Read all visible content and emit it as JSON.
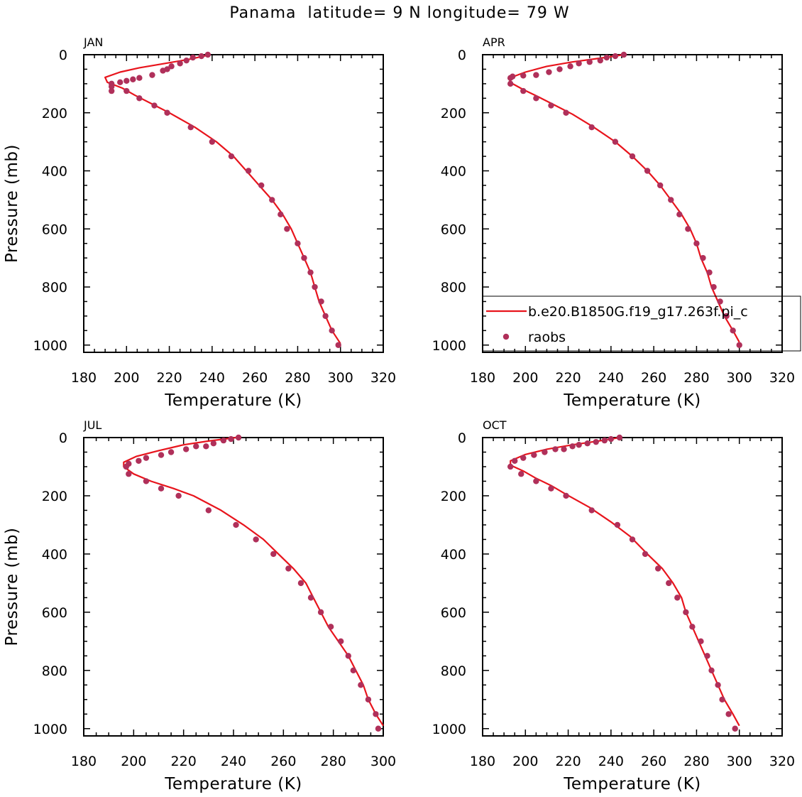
{
  "figure": {
    "title": "Panama  latitude= 9 N longitude= 79 W"
  },
  "chart_data": [
    {
      "type": "line",
      "panel": "JAN",
      "xlabel": "Temperature (K)",
      "ylabel": "Pressure (mb)",
      "xlim": [
        180,
        320
      ],
      "ylim": [
        0,
        1025
      ],
      "y_inverted": true,
      "xticks": [
        180,
        200,
        220,
        240,
        260,
        280,
        300,
        320
      ],
      "yticks": [
        0,
        200,
        400,
        600,
        800,
        1000
      ],
      "series": [
        {
          "name": "b.e20.B1850G.f19_g17.263f.pi_c",
          "kind": "line",
          "color": "#e8141c",
          "points": [
            [
              239,
              0
            ],
            [
              230,
              15
            ],
            [
              218,
              30
            ],
            [
              206,
              45
            ],
            [
              197,
              60
            ],
            [
              190,
              78
            ],
            [
              191,
              95
            ],
            [
              198,
              115
            ],
            [
              204,
              140
            ],
            [
              212,
              170
            ],
            [
              220,
              200
            ],
            [
              232,
              250
            ],
            [
              242,
              300
            ],
            [
              250,
              350
            ],
            [
              256,
              400
            ],
            [
              262,
              450
            ],
            [
              268,
              500
            ],
            [
              273,
              550
            ],
            [
              277,
              600
            ],
            [
              280,
              650
            ],
            [
              283,
              700
            ],
            [
              286,
              750
            ],
            [
              288,
              800
            ],
            [
              290,
              850
            ],
            [
              293,
              900
            ],
            [
              296,
              950
            ],
            [
              300,
              995
            ]
          ]
        },
        {
          "name": "raobs",
          "kind": "scatter",
          "color": "#b0305a",
          "points": [
            [
              238,
              0
            ],
            [
              235,
              5
            ],
            [
              231,
              10
            ],
            [
              228,
              20
            ],
            [
              225,
              30
            ],
            [
              221,
              40
            ],
            [
              219,
              50
            ],
            [
              217,
              55
            ],
            [
              212,
              70
            ],
            [
              206,
              80
            ],
            [
              203,
              85
            ],
            [
              200,
              90
            ],
            [
              197,
              95
            ],
            [
              193,
              100
            ],
            [
              193,
              110
            ],
            [
              193,
              125
            ],
            [
              200,
              125
            ],
            [
              206,
              150
            ],
            [
              213,
              175
            ],
            [
              219,
              200
            ],
            [
              230,
              250
            ],
            [
              240,
              300
            ],
            [
              249,
              350
            ],
            [
              257,
              400
            ],
            [
              263,
              450
            ],
            [
              268,
              500
            ],
            [
              272,
              550
            ],
            [
              275,
              600
            ],
            [
              280,
              650
            ],
            [
              283,
              700
            ],
            [
              286,
              750
            ],
            [
              288,
              800
            ],
            [
              291,
              850
            ],
            [
              293,
              900
            ],
            [
              296,
              950
            ],
            [
              299,
              1000
            ]
          ]
        }
      ]
    },
    {
      "type": "line",
      "panel": "APR",
      "xlabel": "Temperature (K)",
      "ylabel": "",
      "xlim": [
        180,
        320
      ],
      "ylim": [
        0,
        1025
      ],
      "y_inverted": true,
      "xticks": [
        180,
        200,
        220,
        240,
        260,
        280,
        300,
        320
      ],
      "yticks": [
        0,
        200,
        400,
        600,
        800,
        1000
      ],
      "legend": {
        "placement": "lower-right",
        "entries": [
          "b.e20.B1850G.f19_g17.263f.pi_c",
          "raobs"
        ]
      },
      "series": [
        {
          "name": "b.e20.B1850G.f19_g17.263f.pi_c",
          "kind": "line",
          "color": "#e8141c",
          "points": [
            [
              246,
              0
            ],
            [
              235,
              12
            ],
            [
              222,
              25
            ],
            [
              210,
              40
            ],
            [
              200,
              60
            ],
            [
              192,
              82
            ],
            [
              194,
              100
            ],
            [
              199,
              120
            ],
            [
              206,
              145
            ],
            [
              214,
              175
            ],
            [
              222,
              205
            ],
            [
              232,
              250
            ],
            [
              242,
              300
            ],
            [
              250,
              350
            ],
            [
              257,
              400
            ],
            [
              263,
              450
            ],
            [
              268,
              500
            ],
            [
              273,
              550
            ],
            [
              277,
              600
            ],
            [
              280,
              650
            ],
            [
              282,
              700
            ],
            [
              285,
              750
            ],
            [
              287,
              800
            ],
            [
              290,
              850
            ],
            [
              293,
              900
            ],
            [
              297,
              950
            ],
            [
              300,
              990
            ]
          ]
        },
        {
          "name": "raobs",
          "kind": "scatter",
          "color": "#b0305a",
          "points": [
            [
              246,
              0
            ],
            [
              242,
              5
            ],
            [
              238,
              10
            ],
            [
              235,
              20
            ],
            [
              230,
              25
            ],
            [
              225,
              30
            ],
            [
              221,
              40
            ],
            [
              216,
              50
            ],
            [
              211,
              60
            ],
            [
              205,
              70
            ],
            [
              199,
              72
            ],
            [
              194,
              75
            ],
            [
              193,
              80
            ],
            [
              193,
              100
            ],
            [
              199,
              125
            ],
            [
              205,
              150
            ],
            [
              212,
              175
            ],
            [
              219,
              200
            ],
            [
              231,
              250
            ],
            [
              242,
              300
            ],
            [
              250,
              350
            ],
            [
              257,
              400
            ],
            [
              263,
              450
            ],
            [
              268,
              500
            ],
            [
              272,
              550
            ],
            [
              276,
              600
            ],
            [
              280,
              650
            ],
            [
              283,
              700
            ],
            [
              286,
              750
            ],
            [
              288,
              800
            ],
            [
              291,
              850
            ],
            [
              294,
              900
            ],
            [
              297,
              950
            ],
            [
              300,
              1000
            ]
          ]
        }
      ]
    },
    {
      "type": "line",
      "panel": "JUL",
      "xlabel": "Temperature (K)",
      "ylabel": "Pressure (mb)",
      "xlim": [
        180,
        300
      ],
      "ylim": [
        0,
        1025
      ],
      "y_inverted": true,
      "xticks": [
        180,
        200,
        220,
        240,
        260,
        280,
        300
      ],
      "yticks": [
        0,
        200,
        400,
        600,
        800,
        1000
      ],
      "series": [
        {
          "name": "b.e20.B1850G.f19_g17.263f.pi_c",
          "kind": "line",
          "color": "#e8141c",
          "points": [
            [
              241,
              0
            ],
            [
              230,
              12
            ],
            [
              220,
              25
            ],
            [
              210,
              45
            ],
            [
              201,
              65
            ],
            [
              196,
              85
            ],
            [
              196,
              100
            ],
            [
              200,
              125
            ],
            [
              207,
              150
            ],
            [
              216,
              175
            ],
            [
              224,
              200
            ],
            [
              235,
              250
            ],
            [
              244,
              300
            ],
            [
              252,
              350
            ],
            [
              258,
              400
            ],
            [
              264,
              450
            ],
            [
              269,
              500
            ],
            [
              272,
              550
            ],
            [
              275,
              600
            ],
            [
              278,
              650
            ],
            [
              282,
              700
            ],
            [
              286,
              750
            ],
            [
              289,
              800
            ],
            [
              292,
              850
            ],
            [
              294,
              900
            ],
            [
              297,
              950
            ],
            [
              300,
              990
            ]
          ]
        },
        {
          "name": "raobs",
          "kind": "scatter",
          "color": "#b0305a",
          "points": [
            [
              242,
              0
            ],
            [
              239,
              5
            ],
            [
              236,
              10
            ],
            [
              232,
              20
            ],
            [
              229,
              30
            ],
            [
              225,
              30
            ],
            [
              221,
              40
            ],
            [
              215,
              50
            ],
            [
              211,
              60
            ],
            [
              205,
              70
            ],
            [
              202,
              80
            ],
            [
              198,
              90
            ],
            [
              197,
              100
            ],
            [
              198,
              125
            ],
            [
              205,
              150
            ],
            [
              211,
              175
            ],
            [
              218,
              200
            ],
            [
              230,
              250
            ],
            [
              241,
              300
            ],
            [
              249,
              350
            ],
            [
              256,
              400
            ],
            [
              262,
              450
            ],
            [
              267,
              500
            ],
            [
              271,
              550
            ],
            [
              275,
              600
            ],
            [
              279,
              650
            ],
            [
              283,
              700
            ],
            [
              286,
              750
            ],
            [
              288,
              800
            ],
            [
              291,
              850
            ],
            [
              294,
              900
            ],
            [
              297,
              950
            ],
            [
              298,
              1000
            ]
          ]
        }
      ]
    },
    {
      "type": "line",
      "panel": "OCT",
      "xlabel": "Temperature (K)",
      "ylabel": "",
      "xlim": [
        180,
        320
      ],
      "ylim": [
        0,
        1025
      ],
      "y_inverted": true,
      "xticks": [
        180,
        200,
        220,
        240,
        260,
        280,
        300,
        320
      ],
      "yticks": [
        0,
        200,
        400,
        600,
        800,
        1000
      ],
      "series": [
        {
          "name": "b.e20.B1850G.f19_g17.263f.pi_c",
          "kind": "line",
          "color": "#e8141c",
          "points": [
            [
              244,
              0
            ],
            [
              234,
              12
            ],
            [
              222,
              25
            ],
            [
              210,
              40
            ],
            [
              200,
              58
            ],
            [
              193,
              80
            ],
            [
              193,
              95
            ],
            [
              199,
              115
            ],
            [
              205,
              140
            ],
            [
              212,
              165
            ],
            [
              219,
              195
            ],
            [
              230,
              240
            ],
            [
              240,
              290
            ],
            [
              249,
              340
            ],
            [
              257,
              400
            ],
            [
              264,
              450
            ],
            [
              269,
              500
            ],
            [
              273,
              550
            ],
            [
              275,
              600
            ],
            [
              278,
              650
            ],
            [
              281,
              700
            ],
            [
              284,
              750
            ],
            [
              287,
              800
            ],
            [
              290,
              850
            ],
            [
              293,
              900
            ],
            [
              297,
              950
            ],
            [
              300,
              990
            ]
          ]
        },
        {
          "name": "raobs",
          "kind": "scatter",
          "color": "#b0305a",
          "points": [
            [
              244,
              0
            ],
            [
              240,
              5
            ],
            [
              237,
              10
            ],
            [
              233,
              15
            ],
            [
              229,
              20
            ],
            [
              225,
              25
            ],
            [
              222,
              30
            ],
            [
              218,
              40
            ],
            [
              214,
              40
            ],
            [
              209,
              50
            ],
            [
              204,
              60
            ],
            [
              199,
              70
            ],
            [
              195,
              80
            ],
            [
              193,
              100
            ],
            [
              198,
              125
            ],
            [
              205,
              150
            ],
            [
              212,
              175
            ],
            [
              219,
              200
            ],
            [
              231,
              250
            ],
            [
              243,
              300
            ],
            [
              250,
              350
            ],
            [
              256,
              400
            ],
            [
              262,
              450
            ],
            [
              267,
              500
            ],
            [
              271,
              550
            ],
            [
              275,
              600
            ],
            [
              278,
              650
            ],
            [
              282,
              700
            ],
            [
              285,
              750
            ],
            [
              287,
              800
            ],
            [
              290,
              850
            ],
            [
              292,
              900
            ],
            [
              295,
              950
            ],
            [
              298,
              1000
            ]
          ]
        }
      ]
    }
  ]
}
